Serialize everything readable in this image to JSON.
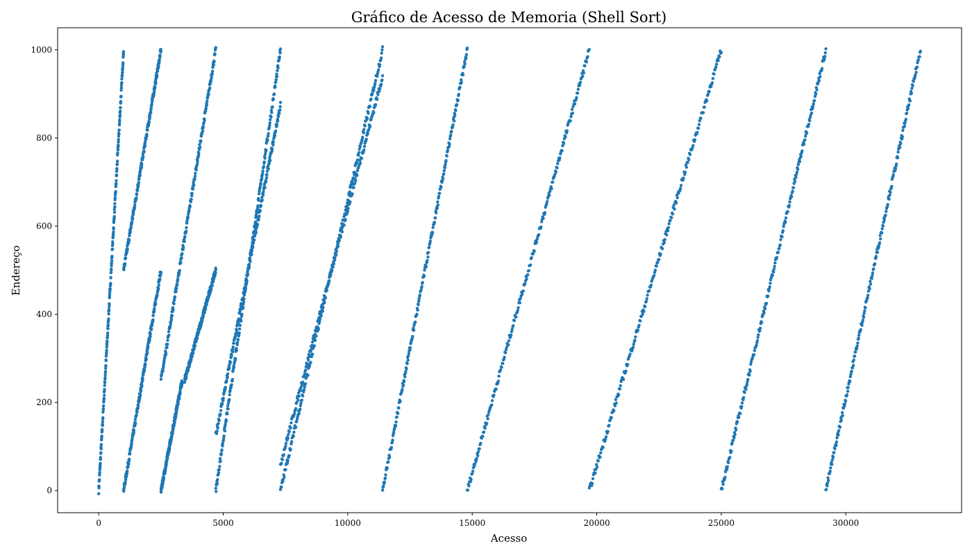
{
  "chart_data": {
    "type": "scatter",
    "title": "Gráfico de Acesso de Memoria (Shell Sort)",
    "xlabel": "Acesso",
    "ylabel": "Endereço",
    "xlim": [
      -1650,
      34650
    ],
    "ylim": [
      -50,
      1050
    ],
    "xticks": [
      0,
      5000,
      10000,
      15000,
      20000,
      25000,
      30000
    ],
    "yticks": [
      0,
      200,
      400,
      600,
      800,
      1000
    ],
    "grid": false,
    "legend": "none",
    "series_color": "#1f77b4",
    "segments": [
      {
        "x": [
          0,
          1000
        ],
        "y": [
          0,
          1000
        ]
      },
      {
        "x": [
          1000,
          2500
        ],
        "y": [
          0,
          500
        ]
      },
      {
        "x": [
          1000,
          2500
        ],
        "y": [
          500,
          1000
        ]
      },
      {
        "x": [
          2500,
          3350
        ],
        "y": [
          0,
          250
        ]
      },
      {
        "x": [
          2500,
          4700
        ],
        "y": [
          250,
          1000
        ]
      },
      {
        "x": [
          3450,
          4700
        ],
        "y": [
          250,
          500
        ]
      },
      {
        "x": [
          4700,
          7300
        ],
        "y": [
          0,
          1000
        ]
      },
      {
        "x": [
          4700,
          7300
        ],
        "y": [
          125,
          875
        ]
      },
      {
        "x": [
          7300,
          11400
        ],
        "y": [
          0,
          1000
        ]
      },
      {
        "x": [
          7300,
          11400
        ],
        "y": [
          60,
          940
        ]
      },
      {
        "x": [
          11400,
          14800
        ],
        "y": [
          0,
          1000
        ]
      },
      {
        "x": [
          14800,
          19700
        ],
        "y": [
          0,
          1000
        ]
      },
      {
        "x": [
          19700,
          25000
        ],
        "y": [
          0,
          1000
        ]
      },
      {
        "x": [
          25000,
          29200
        ],
        "y": [
          0,
          1000
        ]
      },
      {
        "x": [
          29200,
          33000
        ],
        "y": [
          0,
          1000
        ]
      }
    ]
  }
}
